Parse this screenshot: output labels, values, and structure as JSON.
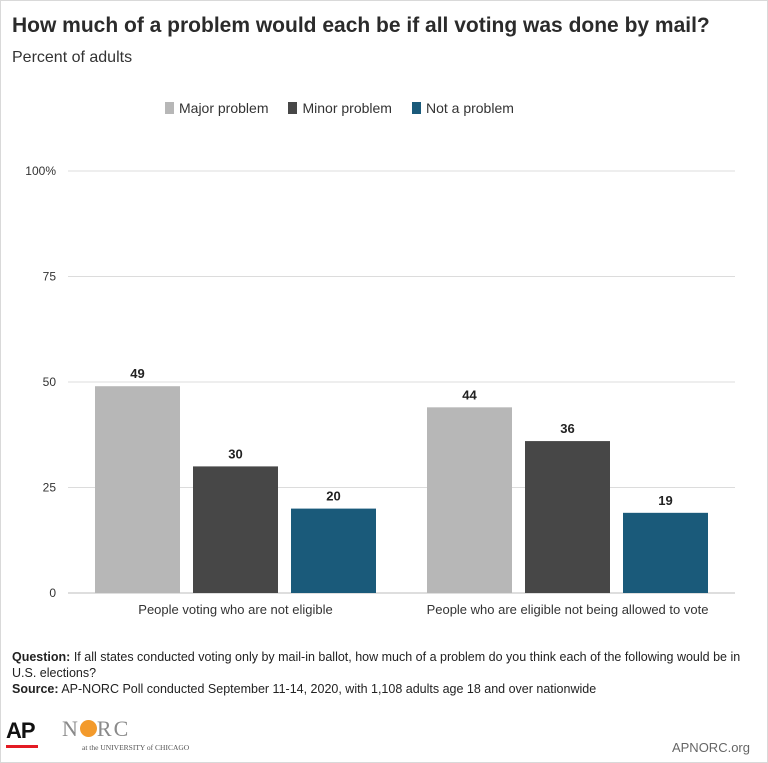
{
  "title": "How much of a problem would each be if all voting was done by mail?",
  "subtitle": "Percent of adults",
  "chart_data": {
    "type": "bar",
    "categories": [
      "People voting who are not eligible",
      "People who are eligible not being allowed to vote"
    ],
    "series": [
      {
        "name": "Major problem",
        "color": "#b7b7b7",
        "values": [
          49,
          44
        ]
      },
      {
        "name": "Minor problem",
        "color": "#474747",
        "values": [
          30,
          36
        ]
      },
      {
        "name": "Not a problem",
        "color": "#1a5a7a",
        "values": [
          20,
          19
        ]
      }
    ],
    "data_labels": [
      [
        "49",
        "44"
      ],
      [
        "30",
        "36"
      ],
      [
        "20",
        "19"
      ]
    ],
    "yticks": [
      "0",
      "25",
      "50",
      "75",
      "100%"
    ],
    "ytick_values": [
      0,
      25,
      50,
      75,
      100
    ],
    "ylim": [
      0,
      100
    ],
    "grid": true,
    "legend_position": "top"
  },
  "notes": {
    "question_label": "Question:",
    "question_text": "If all states conducted voting only by mail-in ballot, how much of a problem do you think each of the following would be in U.S. elections?",
    "source_label": "Source:",
    "source_text": "AP-NORC Poll conducted September 11-14, 2020, with 1,108 adults age 18 and over nationwide"
  },
  "footer": {
    "ap_logo": "AP",
    "norc_logo_left": "N",
    "norc_logo_right": "RC",
    "norc_sub": "at the UNIVERSITY of CHICAGO",
    "site": "APNORC.org"
  }
}
